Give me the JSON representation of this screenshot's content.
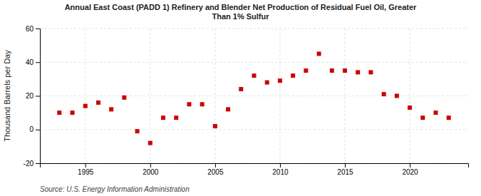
{
  "chart_data": {
    "type": "scatter",
    "title": "Annual East Coast (PADD 1) Refinery and Blender Net Production of Residual Fuel Oil, Greater\nThan 1% Sulfur",
    "ylabel": "Thousand Barrels per Day",
    "source": "Source: U.S. Energy Information Administration",
    "x": [
      1993,
      1994,
      1995,
      1996,
      1997,
      1998,
      1999,
      2000,
      2001,
      2002,
      2003,
      2004,
      2005,
      2006,
      2007,
      2008,
      2009,
      2010,
      2011,
      2012,
      2013,
      2014,
      2015,
      2016,
      2017,
      2018,
      2019,
      2020,
      2021,
      2022,
      2023
    ],
    "values": [
      10,
      10,
      14,
      16,
      12,
      19,
      -1,
      -8,
      7,
      7,
      15,
      15,
      2,
      12,
      24,
      32,
      28,
      29,
      32,
      35,
      45,
      35,
      35,
      34,
      34,
      21,
      20,
      13,
      7,
      10,
      7
    ],
    "color": "#cc0000",
    "marker": "square",
    "xlim": [
      1991.5,
      2024.5
    ],
    "xticks": [
      1995,
      2000,
      2005,
      2010,
      2015,
      2020
    ],
    "ylim": [
      -20,
      60
    ],
    "yticks": [
      -20,
      0,
      20,
      40,
      60
    ],
    "grid": true
  }
}
